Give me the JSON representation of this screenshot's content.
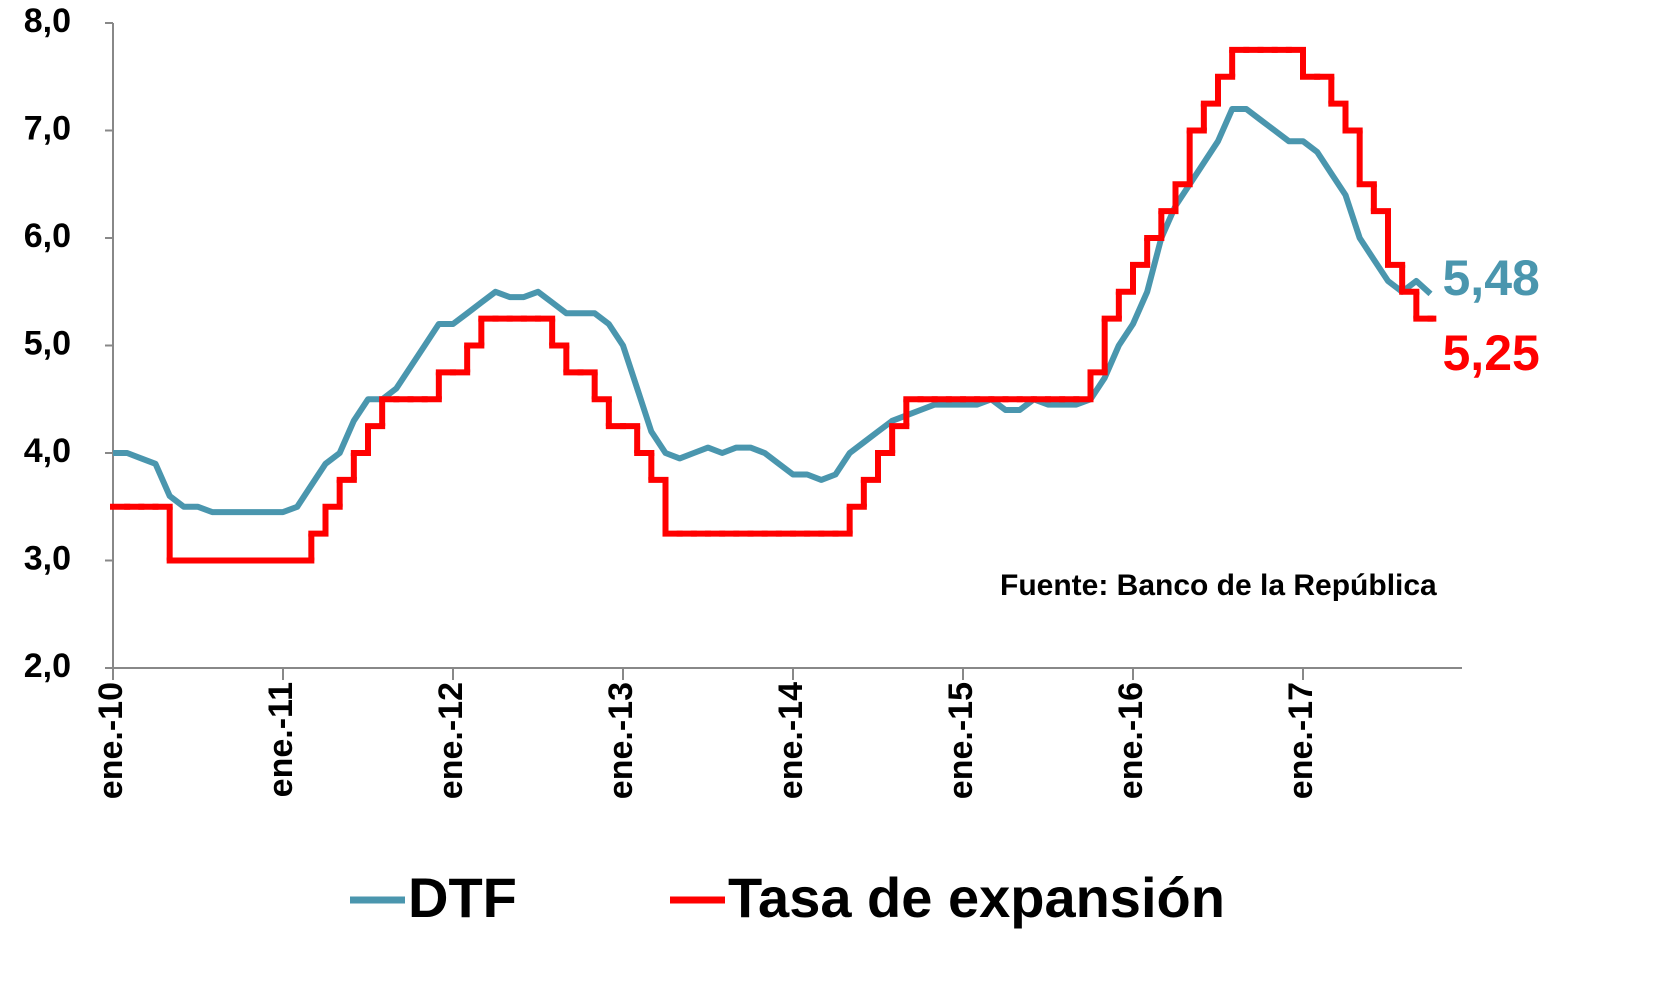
{
  "chart_data": {
    "type": "line",
    "source": "Fuente: Banco de la República",
    "categories": [
      "ene.-10",
      null,
      null,
      null,
      null,
      null,
      null,
      null,
      null,
      null,
      null,
      null,
      "ene.-11",
      null,
      null,
      null,
      null,
      null,
      null,
      null,
      null,
      null,
      null,
      null,
      "ene.-12",
      null,
      null,
      null,
      null,
      null,
      null,
      null,
      null,
      null,
      null,
      null,
      "ene.-13",
      null,
      null,
      null,
      null,
      null,
      null,
      null,
      null,
      null,
      null,
      null,
      "ene.-14",
      null,
      null,
      null,
      null,
      null,
      null,
      null,
      null,
      null,
      null,
      null,
      "ene.-15",
      null,
      null,
      null,
      null,
      null,
      null,
      null,
      null,
      null,
      null,
      null,
      "ene.-16",
      null,
      null,
      null,
      null,
      null,
      null,
      null,
      null,
      null,
      null,
      null,
      "ene.-17",
      null,
      null,
      null,
      null,
      null,
      null,
      null,
      null,
      null
    ],
    "series": [
      {
        "name": "DTF",
        "color": "#4a96ae",
        "step": false,
        "values": [
          4.0,
          4.0,
          3.95,
          3.9,
          3.6,
          3.5,
          3.5,
          3.45,
          3.45,
          3.45,
          3.45,
          3.45,
          3.45,
          3.5,
          3.7,
          3.9,
          4.0,
          4.3,
          4.5,
          4.5,
          4.6,
          4.8,
          5.0,
          5.2,
          5.2,
          5.3,
          5.4,
          5.5,
          5.45,
          5.45,
          5.5,
          5.4,
          5.3,
          5.3,
          5.3,
          5.2,
          5.0,
          4.6,
          4.2,
          4.0,
          3.95,
          4.0,
          4.05,
          4.0,
          4.05,
          4.05,
          4.0,
          3.9,
          3.8,
          3.8,
          3.75,
          3.8,
          4.0,
          4.1,
          4.2,
          4.3,
          4.35,
          4.4,
          4.45,
          4.45,
          4.45,
          4.45,
          4.5,
          4.4,
          4.4,
          4.5,
          4.45,
          4.45,
          4.45,
          4.5,
          4.7,
          5.0,
          5.2,
          5.5,
          6.0,
          6.3,
          6.5,
          6.7,
          6.9,
          7.2,
          7.2,
          7.1,
          7.0,
          6.9,
          6.9,
          6.8,
          6.6,
          6.4,
          6.0,
          5.8,
          5.6,
          5.5,
          5.6,
          5.48
        ],
        "value_labels": [
          null,
          null,
          null,
          null,
          null,
          null,
          null,
          null,
          null,
          null,
          null,
          null,
          null,
          null,
          null,
          null,
          null,
          null,
          null,
          null,
          null,
          null,
          null,
          null,
          null,
          null,
          null,
          null,
          null,
          null,
          null,
          null,
          null,
          null,
          null,
          null,
          null,
          null,
          null,
          null,
          null,
          null,
          null,
          null,
          null,
          null,
          null,
          null,
          null,
          null,
          null,
          null,
          null,
          null,
          null,
          null,
          null,
          null,
          null,
          null,
          null,
          null,
          null,
          null,
          null,
          null,
          null,
          null,
          null,
          null,
          null,
          null,
          null,
          null,
          null,
          null,
          null,
          null,
          null,
          null,
          null,
          null,
          null,
          null,
          null,
          null,
          null,
          null,
          null,
          null,
          null,
          null,
          null,
          "5,48"
        ]
      },
      {
        "name": "Tasa de expansión",
        "color": "#ff0000",
        "step": true,
        "values": [
          3.5,
          3.5,
          3.5,
          3.5,
          3.0,
          3.0,
          3.0,
          3.0,
          3.0,
          3.0,
          3.0,
          3.0,
          3.0,
          3.0,
          3.25,
          3.5,
          3.75,
          4.0,
          4.25,
          4.5,
          4.5,
          4.5,
          4.5,
          4.75,
          4.75,
          5.0,
          5.25,
          5.25,
          5.25,
          5.25,
          5.25,
          5.0,
          4.75,
          4.75,
          4.5,
          4.25,
          4.25,
          4.0,
          3.75,
          3.25,
          3.25,
          3.25,
          3.25,
          3.25,
          3.25,
          3.25,
          3.25,
          3.25,
          3.25,
          3.25,
          3.25,
          3.25,
          3.5,
          3.75,
          4.0,
          4.25,
          4.5,
          4.5,
          4.5,
          4.5,
          4.5,
          4.5,
          4.5,
          4.5,
          4.5,
          4.5,
          4.5,
          4.5,
          4.5,
          4.75,
          5.25,
          5.5,
          5.75,
          6.0,
          6.25,
          6.5,
          7.0,
          7.25,
          7.5,
          7.75,
          7.75,
          7.75,
          7.75,
          7.75,
          7.5,
          7.5,
          7.25,
          7.0,
          6.5,
          6.25,
          5.75,
          5.5,
          5.25,
          5.25
        ],
        "value_labels": [
          null,
          null,
          null,
          null,
          null,
          null,
          null,
          null,
          null,
          null,
          null,
          null,
          null,
          null,
          null,
          null,
          null,
          null,
          null,
          null,
          null,
          null,
          null,
          null,
          null,
          null,
          null,
          null,
          null,
          null,
          null,
          null,
          null,
          null,
          null,
          null,
          null,
          null,
          null,
          null,
          null,
          null,
          null,
          null,
          null,
          null,
          null,
          null,
          null,
          null,
          null,
          null,
          null,
          null,
          null,
          null,
          null,
          null,
          null,
          null,
          null,
          null,
          null,
          null,
          null,
          null,
          null,
          null,
          null,
          null,
          null,
          null,
          null,
          null,
          null,
          null,
          null,
          null,
          null,
          null,
          null,
          null,
          null,
          null,
          null,
          null,
          null,
          null,
          null,
          null,
          null,
          null,
          null,
          "5,25"
        ]
      }
    ],
    "ylim": [
      2,
      8
    ],
    "yticks": [
      {
        "value": 2,
        "label": "2,0"
      },
      {
        "value": 3,
        "label": "3,0"
      },
      {
        "value": 4,
        "label": "4,0"
      },
      {
        "value": 5,
        "label": "5,0"
      },
      {
        "value": 6,
        "label": "6,0"
      },
      {
        "value": 7,
        "label": "7,0"
      },
      {
        "value": 8,
        "label": "8,0"
      }
    ],
    "grid": false
  }
}
